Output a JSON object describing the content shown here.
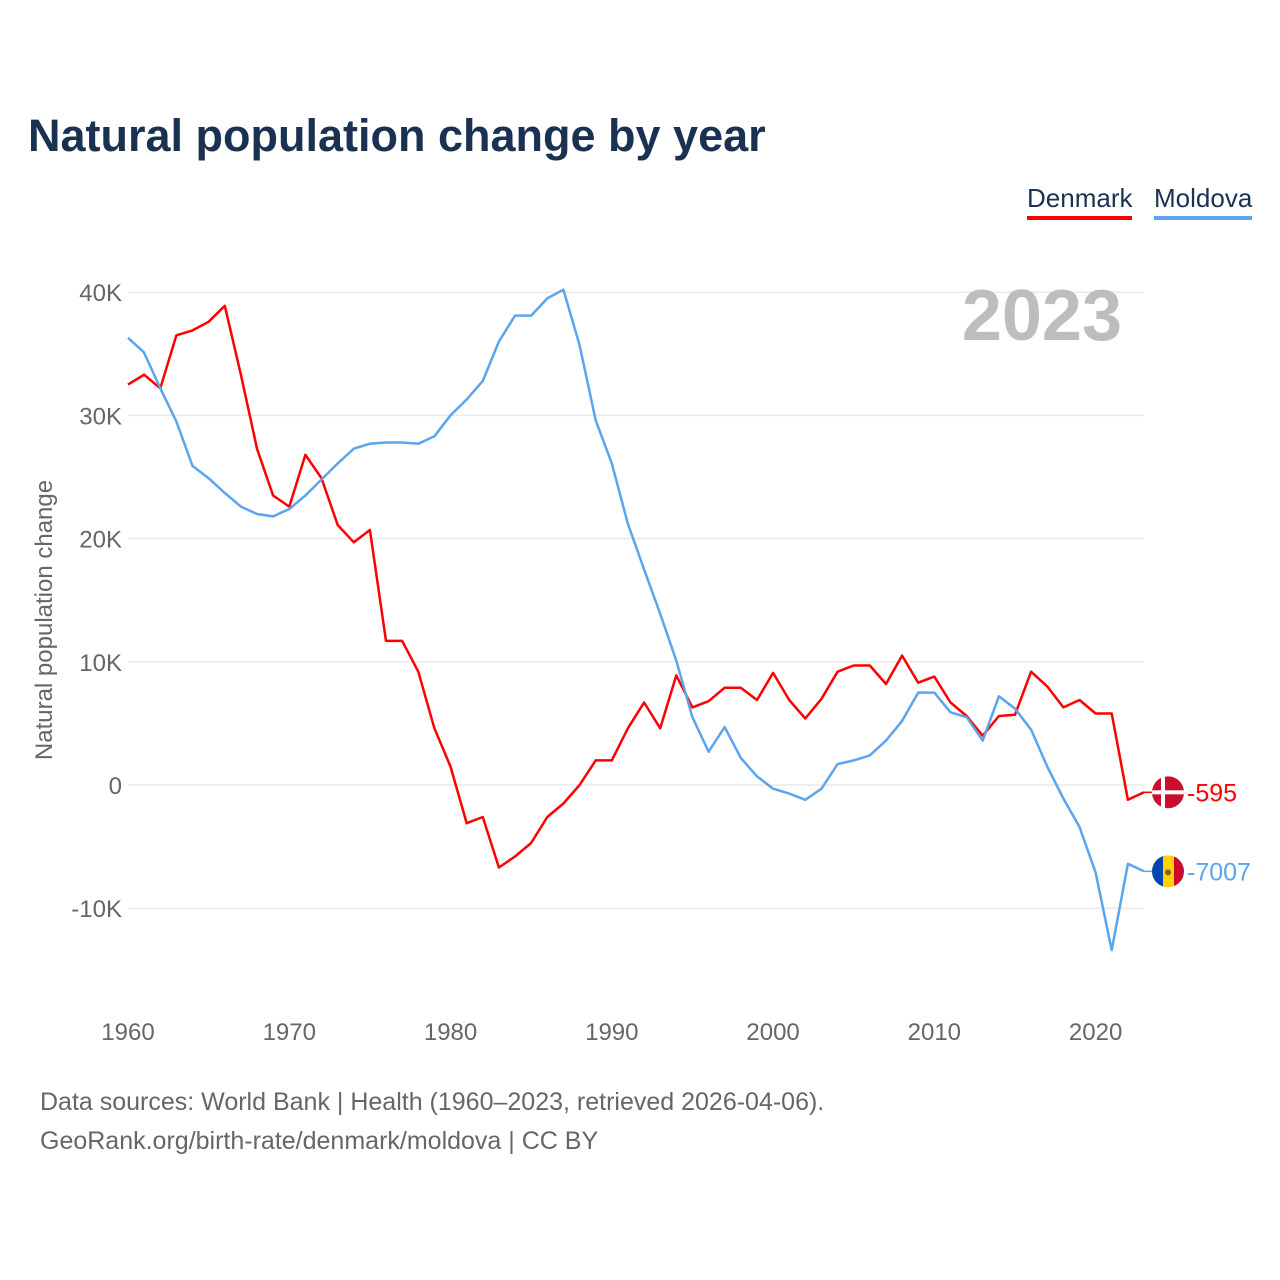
{
  "chart_data": {
    "type": "line",
    "title": "Natural population change by year",
    "ylabel": "Natural population change",
    "xlabel": "",
    "year_label": "2023",
    "xlim": [
      1960,
      2023
    ],
    "ylim": [
      -15000,
      40000
    ],
    "grid": true,
    "legend_position": "top-right",
    "x_ticks": [
      1960,
      1970,
      1980,
      1990,
      2000,
      2010,
      2020
    ],
    "x_tick_labels": [
      "1960",
      "1970",
      "1980",
      "1990",
      "2000",
      "2010",
      "2020"
    ],
    "y_ticks": [
      -10000,
      0,
      10000,
      20000,
      30000,
      40000
    ],
    "y_tick_labels": [
      "-10K",
      "0",
      "10K",
      "20K",
      "30K",
      "40K"
    ],
    "series": [
      {
        "name": "Denmark",
        "color": "#ff0000",
        "end_label": "-595",
        "values": [
          32500,
          33300,
          32200,
          36500,
          36900,
          37600,
          38900,
          33300,
          27300,
          23500,
          22600,
          26800,
          24900,
          21100,
          19700,
          20700,
          11700,
          11700,
          9200,
          4600,
          1500,
          -3100,
          -2600,
          -6700,
          -5800,
          -4700,
          -2600,
          -1500,
          0,
          2000,
          2000,
          4600,
          6700,
          4600,
          8900,
          6300,
          6800,
          7900,
          7900,
          6900,
          9100,
          6900,
          5400,
          7000,
          9200,
          9700,
          9700,
          8200,
          10500,
          8300,
          8800,
          6700,
          5600,
          4000,
          5600,
          5700,
          9200,
          8000,
          6300,
          6900,
          5800,
          5800,
          -1200,
          -595
        ]
      },
      {
        "name": "Moldova",
        "color": "#5aa5ee",
        "end_label": "-7007",
        "values": [
          36300,
          35100,
          32200,
          29500,
          25900,
          24900,
          23700,
          22600,
          22000,
          21800,
          22400,
          23500,
          24800,
          26100,
          27300,
          27700,
          27800,
          27800,
          27700,
          28300,
          30000,
          31300,
          32800,
          36000,
          38100,
          38100,
          39500,
          40200,
          35700,
          29600,
          26100,
          21200,
          17500,
          13900,
          10100,
          5500,
          2700,
          4700,
          2200,
          700,
          -300,
          -700,
          -1200,
          -300,
          1700,
          2000,
          2400,
          3600,
          5200,
          7500,
          7500,
          5900,
          5500,
          3600,
          7200,
          6200,
          4500,
          1500,
          -1100,
          -3400,
          -7100,
          -13400,
          -6400,
          -7007
        ]
      }
    ]
  },
  "footer": {
    "line1": "Data sources: World Bank | Health (1960–2023, retrieved 2026-04-06).",
    "line2": "GeoRank.org/birth-rate/denmark/moldova | CC BY"
  }
}
